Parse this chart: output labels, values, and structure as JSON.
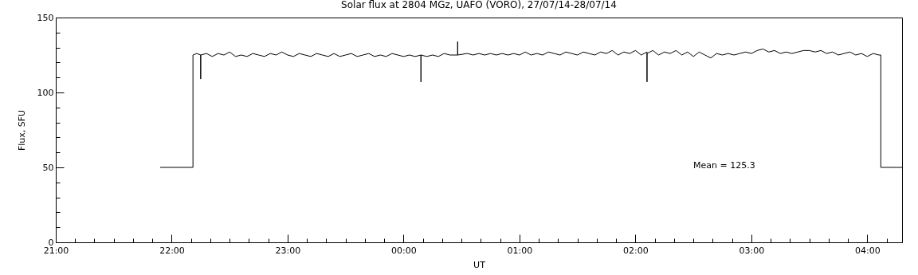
{
  "chart_data": {
    "type": "line",
    "title": "Solar flux at 2804 MGz, UAFO (VORO),  27/07/14-28/07/14",
    "xlabel": "UT",
    "ylabel": "Flux, SFU",
    "annotations": [
      "Mean =  125.3"
    ],
    "x": [
      "--07-27T21:54",
      "--07-27T22:11",
      "--07-27T22:11",
      "--07-27T22:13",
      "--07-27T22:15",
      "--07-27T22:15",
      "--07-27T22:15",
      "--07-27T22:18",
      "--07-27T22:21",
      "--07-27T22:24",
      "--07-27T22:27",
      "--07-27T22:30",
      "--07-27T22:33",
      "--07-27T22:36",
      "--07-27T22:39",
      "--07-27T22:42",
      "--07-27T22:45",
      "--07-27T22:48",
      "--07-27T22:51",
      "--07-27T22:54",
      "--07-27T22:57",
      "--07-27T23:00",
      "--07-27T23:03",
      "--07-27T23:06",
      "--07-27T23:09",
      "--07-27T23:12",
      "--07-27T23:15",
      "--07-27T23:18",
      "--07-27T23:21",
      "--07-27T23:24",
      "--07-27T23:27",
      "--07-27T23:30",
      "--07-27T23:33",
      "--07-27T23:36",
      "--07-27T23:39",
      "--07-27T23:42",
      "--07-27T23:45",
      "--07-27T23:48",
      "--07-27T23:51",
      "--07-27T23:54",
      "--07-27T23:57",
      "--07-28T00:00",
      "--07-28T00:03",
      "--07-28T00:06",
      "--07-28T00:09",
      "--07-28T00:09",
      "--07-28T00:09",
      "--07-28T00:12",
      "--07-28T00:15",
      "--07-28T00:18",
      "--07-28T00:21",
      "--07-28T00:24",
      "--07-28T00:28",
      "--07-28T00:28",
      "--07-28T00:28",
      "--07-28T00:33",
      "--07-28T00:36",
      "--07-28T00:39",
      "--07-28T00:42",
      "--07-28T00:45",
      "--07-28T00:48",
      "--07-28T00:51",
      "--07-28T00:54",
      "--07-28T00:57",
      "--07-28T01:00",
      "--07-28T01:03",
      "--07-28T01:06",
      "--07-28T01:09",
      "--07-28T01:12",
      "--07-28T01:15",
      "--07-28T01:18",
      "--07-28T01:21",
      "--07-28T01:24",
      "--07-28T01:27",
      "--07-28T01:30",
      "--07-28T01:33",
      "--07-28T01:36",
      "--07-28T01:39",
      "--07-28T01:42",
      "--07-28T01:45",
      "--07-28T01:48",
      "--07-28T01:51",
      "--07-28T01:54",
      "--07-28T01:57",
      "--07-28T02:00",
      "--07-28T02:03",
      "--07-28T02:06",
      "--07-28T02:06",
      "--07-28T02:06",
      "--07-28T02:09",
      "--07-28T02:12",
      "--07-28T02:15",
      "--07-28T02:18",
      "--07-28T02:21",
      "--07-28T02:24",
      "--07-28T02:27",
      "--07-28T02:30",
      "--07-28T02:33",
      "--07-28T02:36",
      "--07-28T02:39",
      "--07-28T02:42",
      "--07-28T02:45",
      "--07-28T02:48",
      "--07-28T02:51",
      "--07-28T02:54",
      "--07-28T02:57",
      "--07-28T03:00",
      "--07-28T03:03",
      "--07-28T03:06",
      "--07-28T03:09",
      "--07-28T03:12",
      "--07-28T03:15",
      "--07-28T03:18",
      "--07-28T03:21",
      "--07-28T03:24",
      "--07-28T03:27",
      "--07-28T03:30",
      "--07-28T03:33",
      "--07-28T03:36",
      "--07-28T03:39",
      "--07-28T03:42",
      "--07-28T03:45",
      "--07-28T03:48",
      "--07-28T03:51",
      "--07-28T03:54",
      "--07-28T03:57",
      "--07-28T04:00",
      "--07-28T04:03",
      "--07-28T04:06",
      "--07-28T04:07",
      "--07-28T04:07",
      "--07-28T04:18"
    ],
    "series": [
      {
        "color": "#000000",
        "values": [
          50,
          50,
          125,
          126,
          125,
          109,
          125,
          126,
          124,
          126,
          125,
          127,
          124,
          125,
          124,
          126,
          125,
          124,
          126,
          125,
          127,
          125,
          124,
          126,
          125,
          124,
          126,
          125,
          124,
          126,
          124,
          125,
          126,
          124,
          125,
          126,
          124,
          125,
          124,
          126,
          125,
          124,
          125,
          124,
          125,
          107,
          125,
          124,
          125,
          124,
          126,
          125,
          125,
          134,
          125,
          126,
          125,
          126,
          125,
          126,
          125,
          126,
          125,
          126,
          125,
          127,
          125,
          126,
          125,
          127,
          126,
          125,
          127,
          126,
          125,
          127,
          126,
          125,
          127,
          126,
          128,
          125,
          127,
          126,
          128,
          125,
          127,
          107,
          126,
          128,
          125,
          127,
          126,
          128,
          125,
          127,
          124,
          127,
          125,
          123,
          126,
          125,
          126,
          125,
          126,
          127,
          126,
          128,
          129,
          127,
          128,
          126,
          127,
          126,
          127,
          128,
          128,
          127,
          128,
          126,
          127,
          125,
          126,
          127,
          125,
          126,
          124,
          126,
          125,
          125,
          50,
          50
        ]
      }
    ],
    "xlim": [
      "--07-27T21:00",
      "--07-28T04:18"
    ],
    "xticks": [
      {
        "value": "--07-27T21:00",
        "label": "21:00"
      },
      {
        "value": "--07-27T21:10",
        "label": null
      },
      {
        "value": "--07-27T21:20",
        "label": null
      },
      {
        "value": "--07-27T21:30",
        "label": null
      },
      {
        "value": "--07-27T21:40",
        "label": null
      },
      {
        "value": "--07-27T21:50",
        "label": null
      },
      {
        "value": "--07-27T22:00",
        "label": "22:00"
      },
      {
        "value": "--07-27T22:10",
        "label": null
      },
      {
        "value": "--07-27T22:20",
        "label": null
      },
      {
        "value": "--07-27T22:30",
        "label": null
      },
      {
        "value": "--07-27T22:40",
        "label": null
      },
      {
        "value": "--07-27T22:50",
        "label": null
      },
      {
        "value": "--07-27T23:00",
        "label": "23:00"
      },
      {
        "value": "--07-27T23:10",
        "label": null
      },
      {
        "value": "--07-27T23:20",
        "label": null
      },
      {
        "value": "--07-27T23:30",
        "label": null
      },
      {
        "value": "--07-27T23:40",
        "label": null
      },
      {
        "value": "--07-27T23:50",
        "label": null
      },
      {
        "value": "--07-28T00:00",
        "label": "00:00"
      },
      {
        "value": "--07-28T00:10",
        "label": null
      },
      {
        "value": "--07-28T00:20",
        "label": null
      },
      {
        "value": "--07-28T00:30",
        "label": null
      },
      {
        "value": "--07-28T00:40",
        "label": null
      },
      {
        "value": "--07-28T00:50",
        "label": null
      },
      {
        "value": "--07-28T01:00",
        "label": "01:00"
      },
      {
        "value": "--07-28T01:10",
        "label": null
      },
      {
        "value": "--07-28T01:20",
        "label": null
      },
      {
        "value": "--07-28T01:30",
        "label": null
      },
      {
        "value": "--07-28T01:40",
        "label": null
      },
      {
        "value": "--07-28T01:50",
        "label": null
      },
      {
        "value": "--07-28T02:00",
        "label": "02:00"
      },
      {
        "value": "--07-28T02:10",
        "label": null
      },
      {
        "value": "--07-28T02:20",
        "label": null
      },
      {
        "value": "--07-28T02:30",
        "label": null
      },
      {
        "value": "--07-28T02:40",
        "label": null
      },
      {
        "value": "--07-28T02:50",
        "label": null
      },
      {
        "value": "--07-28T03:00",
        "label": "03:00"
      },
      {
        "value": "--07-28T03:10",
        "label": null
      },
      {
        "value": "--07-28T03:20",
        "label": null
      },
      {
        "value": "--07-28T03:30",
        "label": null
      },
      {
        "value": "--07-28T03:40",
        "label": null
      },
      {
        "value": "--07-28T03:50",
        "label": null
      },
      {
        "value": "--07-28T04:00",
        "label": "04:00"
      },
      {
        "value": "--07-28T04:10",
        "label": null
      }
    ],
    "ylim": [
      0,
      150
    ],
    "yticks": [
      0,
      {
        "value": 10,
        "label": null
      },
      {
        "value": 20,
        "label": null
      },
      {
        "value": 30,
        "label": null
      },
      {
        "value": 40,
        "label": null
      },
      50,
      {
        "value": 60,
        "label": null
      },
      {
        "value": 70,
        "label": null
      },
      {
        "value": 80,
        "label": null
      },
      {
        "value": 90,
        "label": null
      },
      100,
      {
        "value": 110,
        "label": null
      },
      {
        "value": 120,
        "label": null
      },
      {
        "value": 130,
        "label": null
      },
      {
        "value": 140,
        "label": null
      },
      150
    ]
  }
}
